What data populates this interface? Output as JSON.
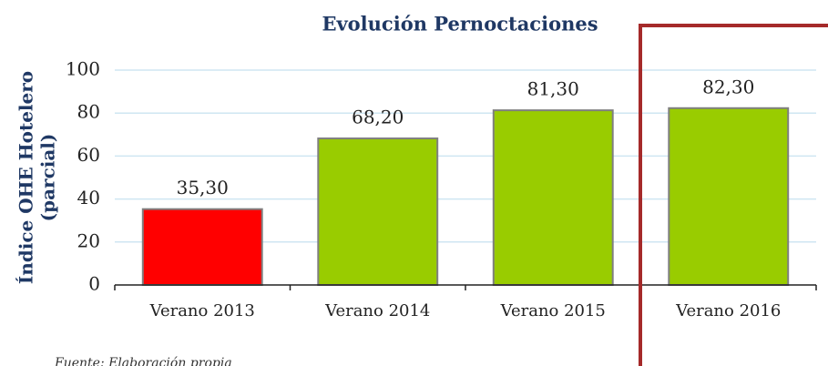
{
  "chart_data": {
    "type": "bar",
    "title": "Evolución Pernoctaciones",
    "y_label": [
      "Índice OHE Hotelero",
      "(parcial)"
    ],
    "categories": [
      "Verano 2013",
      "Verano 2014",
      "Verano 2015",
      "Verano 2016"
    ],
    "values": [
      35.3,
      68.2,
      81.3,
      82.3
    ],
    "value_labels": [
      "35,30",
      "68,20",
      "81,30",
      "82,30"
    ],
    "colors": [
      "#ff0000",
      "#99cc00",
      "#99cc00",
      "#99cc00"
    ],
    "ylim": [
      0,
      100
    ],
    "yticks": [
      0,
      20,
      40,
      60,
      80,
      100
    ],
    "grid": true,
    "source": "Fuente: Elaboración propia"
  }
}
